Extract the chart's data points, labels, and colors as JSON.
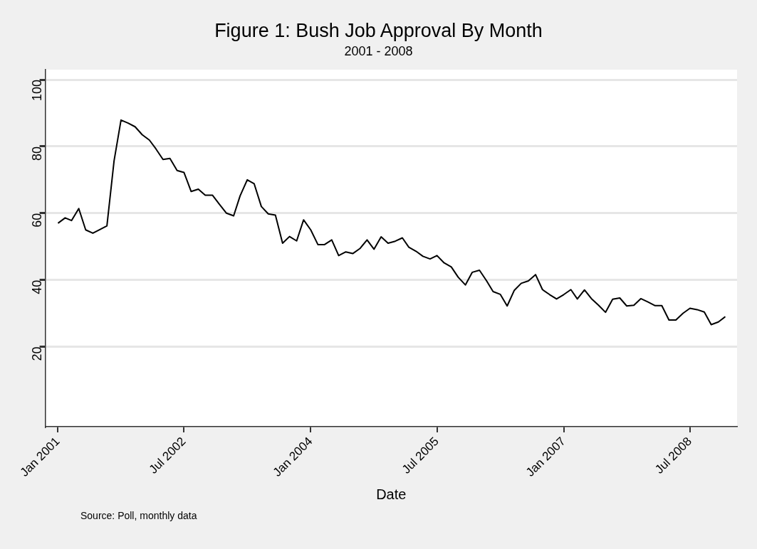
{
  "chart_data": {
    "type": "line",
    "title": "Figure 1: Bush Job Approval By Month",
    "subtitle": "2001 - 2008",
    "xlabel": "Date",
    "annotations": [
      "Source: Poll, monthly data"
    ],
    "x": [
      "2001-01",
      "2001-02",
      "2001-03",
      "2001-04",
      "2001-05",
      "2001-06",
      "2001-07",
      "2001-08",
      "2001-09",
      "2001-10",
      "2001-11",
      "2001-12",
      "2002-01",
      "2002-02",
      "2002-03",
      "2002-04",
      "2002-05",
      "2002-06",
      "2002-07",
      "2002-08",
      "2002-09",
      "2002-10",
      "2002-11",
      "2002-12",
      "2003-01",
      "2003-02",
      "2003-03",
      "2003-04",
      "2003-05",
      "2003-06",
      "2003-07",
      "2003-08",
      "2003-09",
      "2003-10",
      "2003-11",
      "2003-12",
      "2004-01",
      "2004-02",
      "2004-03",
      "2004-04",
      "2004-05",
      "2004-06",
      "2004-07",
      "2004-08",
      "2004-09",
      "2004-10",
      "2004-11",
      "2004-12",
      "2005-01",
      "2005-02",
      "2005-03",
      "2005-04",
      "2005-05",
      "2005-06",
      "2005-07",
      "2005-08",
      "2005-09",
      "2005-10",
      "2005-11",
      "2005-12",
      "2006-01",
      "2006-02",
      "2006-03",
      "2006-04",
      "2006-05",
      "2006-06",
      "2006-07",
      "2006-08",
      "2006-09",
      "2006-10",
      "2006-11",
      "2006-12",
      "2007-01",
      "2007-02",
      "2007-03",
      "2007-04",
      "2007-05",
      "2007-06",
      "2007-07",
      "2007-08",
      "2007-09",
      "2007-10",
      "2007-11",
      "2007-12",
      "2008-01",
      "2008-02",
      "2008-03",
      "2008-04",
      "2008-05",
      "2008-06",
      "2008-07",
      "2008-08",
      "2008-09",
      "2008-10",
      "2008-11",
      "2008-12"
    ],
    "series": [
      {
        "color": "#000000",
        "values": [
          57.0,
          58.6,
          57.8,
          61.4,
          55.0,
          54.0,
          55.1,
          56.2,
          75.7,
          87.9,
          87.0,
          85.9,
          83.5,
          81.9,
          79.3,
          76.1,
          76.4,
          72.8,
          72.2,
          66.5,
          67.2,
          65.4,
          65.4,
          62.7,
          60.0,
          59.2,
          65.2,
          70.0,
          68.8,
          62.0,
          59.8,
          59.4,
          51.0,
          53.0,
          51.7,
          58.0,
          55.0,
          50.6,
          50.6,
          52.0,
          47.3,
          48.4,
          47.9,
          49.4,
          52.0,
          49.2,
          52.9,
          51.0,
          51.6,
          52.6,
          49.8,
          48.6,
          47.1,
          46.3,
          47.3,
          45.1,
          43.9,
          40.8,
          38.5,
          42.3,
          42.9,
          39.7,
          36.5,
          35.7,
          32.2,
          36.9,
          39.0,
          39.7,
          41.6,
          37.1,
          35.6,
          34.3,
          35.6,
          37.1,
          34.3,
          37.0,
          34.4,
          32.4,
          30.3,
          34.2,
          34.6,
          32.2,
          32.4,
          34.4,
          33.4,
          32.3,
          32.3,
          28.0,
          28.0,
          30.0,
          31.5,
          31.1,
          30.4,
          26.6,
          27.4,
          29.0
        ]
      }
    ],
    "xlim": [
      "2000-11-07",
      "2009-01-21"
    ],
    "xticks": [
      {
        "value": "2001-01",
        "label": "Jan 2001"
      },
      {
        "value": "2002-07",
        "label": "Jul 2002"
      },
      {
        "value": "2004-01",
        "label": "Jan 2004"
      },
      {
        "value": "2005-07",
        "label": "Jul 2005"
      },
      {
        "value": "2007-01",
        "label": "Jan 2007"
      },
      {
        "value": "2008-07",
        "label": "Jul 2008"
      }
    ],
    "ylim": [
      -4,
      103
    ],
    "yticks": [
      20,
      40,
      60,
      80,
      100
    ],
    "grid": "y",
    "legend": false,
    "marker": "none",
    "line_style": "solid"
  }
}
